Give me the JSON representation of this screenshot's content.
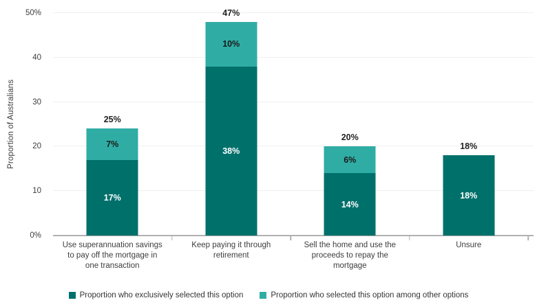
{
  "chart_data": {
    "type": "bar",
    "subtype": "stacked",
    "title": "",
    "ylabel": "Proportion of Australians",
    "ylim": [
      0,
      50
    ],
    "grid": true,
    "legend_position": "bottom",
    "yticks": [
      {
        "value": 0,
        "label": "0%"
      },
      {
        "value": 10,
        "label": "10"
      },
      {
        "value": 20,
        "label": "20"
      },
      {
        "value": 30,
        "label": "30"
      },
      {
        "value": 40,
        "label": "40"
      },
      {
        "value": 50,
        "label": "50%"
      }
    ],
    "categories": [
      "Use superannuation savings to pay off the mortgage in one transaction",
      "Keep paying it through retirement",
      "Sell the home and use the proceeds to repay the mortgage",
      "Unsure"
    ],
    "series": [
      {
        "name": "Proportion who exclusively selected this option",
        "color": "#00706B",
        "label_color": "#ffffff",
        "values": [
          17,
          38,
          14,
          18
        ],
        "labels": [
          "17%",
          "38%",
          "14%",
          "18%"
        ]
      },
      {
        "name": "Proportion who selected this option among other options",
        "color": "#2FADA5",
        "label_color": "#1a1a1a",
        "values": [
          7,
          10,
          6,
          0
        ],
        "labels": [
          "7%",
          "10%",
          "6%",
          ""
        ]
      }
    ],
    "totals": [
      25,
      47,
      20,
      18
    ],
    "total_labels": [
      "25%",
      "47%",
      "20%",
      "18%"
    ]
  },
  "colors": {
    "axis_line": "#b0b0b0",
    "gridline": "#efefef",
    "tick_text": "#3d3d3d",
    "total_text": "#1f1f1f"
  }
}
